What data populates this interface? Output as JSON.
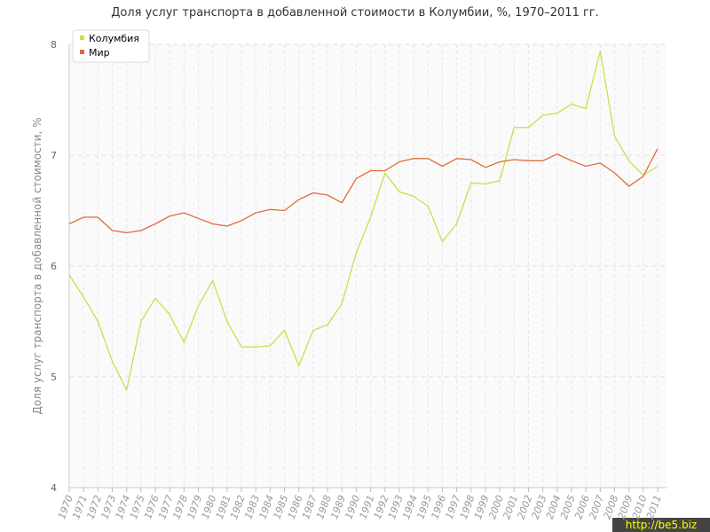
{
  "chart_data": {
    "type": "line",
    "title": "Доля услуг транспорта в добавленной стоимости в Колумбии, %, 1970–2011 гг.",
    "y_label": "Доля услуг транспорта в добавленной стоимости, %",
    "watermark": "http://be5.biz",
    "categories": [
      "1970",
      "1971",
      "1972",
      "1973",
      "1974",
      "1975",
      "1976",
      "1977",
      "1978",
      "1979",
      "1980",
      "1981",
      "1982",
      "1983",
      "1984",
      "1985",
      "1986",
      "1987",
      "1988",
      "1989",
      "1990",
      "1991",
      "1992",
      "1993",
      "1994",
      "1995",
      "1996",
      "1997",
      "1998",
      "1999",
      "2000",
      "2001",
      "2002",
      "2003",
      "2004",
      "2005",
      "2006",
      "2007",
      "2008",
      "2009",
      "2010",
      "2011"
    ],
    "series": [
      {
        "name": "Колумбия",
        "color": "#c8e04a",
        "values": [
          5.92,
          5.72,
          5.5,
          5.14,
          4.88,
          5.5,
          5.71,
          5.56,
          5.31,
          5.64,
          5.87,
          5.5,
          5.27,
          5.27,
          5.28,
          5.42,
          5.1,
          5.42,
          5.47,
          5.66,
          6.12,
          6.44,
          6.84,
          6.67,
          6.63,
          6.54,
          6.22,
          6.38,
          6.75,
          6.74,
          6.77,
          7.25,
          7.25,
          7.36,
          7.38,
          7.46,
          7.42,
          7.94,
          7.17,
          6.95,
          6.82,
          6.9
        ]
      },
      {
        "name": "Мир",
        "color": "#e06a3a",
        "values": [
          6.38,
          6.44,
          6.44,
          6.32,
          6.3,
          6.32,
          6.38,
          6.45,
          6.48,
          6.43,
          6.38,
          6.36,
          6.41,
          6.48,
          6.51,
          6.5,
          6.6,
          6.66,
          6.64,
          6.57,
          6.79,
          6.86,
          6.86,
          6.94,
          6.97,
          6.97,
          6.9,
          6.97,
          6.96,
          6.89,
          6.94,
          6.96,
          6.95,
          6.95,
          7.01,
          6.95,
          6.9,
          6.93,
          6.84,
          6.72,
          6.81,
          7.06
        ]
      }
    ],
    "ylim": [
      4,
      8
    ],
    "yticks": [
      4,
      5,
      6,
      7,
      8
    ],
    "grid": true,
    "legend": "top-left"
  }
}
